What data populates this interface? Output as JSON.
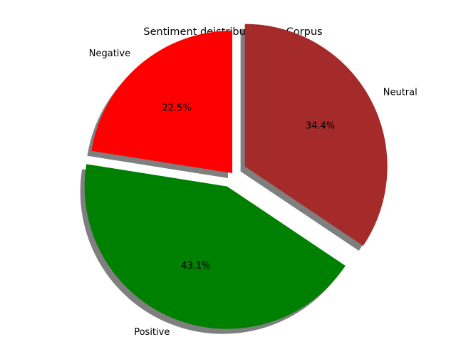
{
  "chart_data": {
    "type": "pie",
    "title": "Sentiment deistribution for Corpus",
    "slices": [
      {
        "label": "Negative",
        "value": 22.5,
        "pct_label": "22.5%",
        "color": "#ff0000",
        "exploded": false
      },
      {
        "label": "Positive",
        "value": 43.1,
        "pct_label": "43.1%",
        "color": "#008000",
        "exploded": true
      },
      {
        "label": "Neutral",
        "value": 34.4,
        "pct_label": "34.4%",
        "color": "#a52a2a",
        "exploded": true
      }
    ],
    "start_angle_deg": 90,
    "direction": "counterclockwise",
    "shadow": true,
    "legend": "none",
    "grid": false
  }
}
